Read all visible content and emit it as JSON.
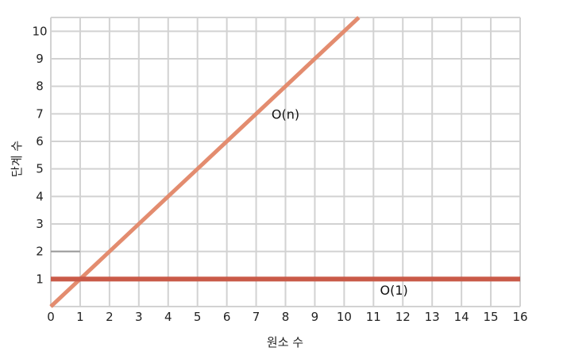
{
  "chart_data": {
    "type": "line",
    "xlabel": "원소 수",
    "ylabel": "단계 수",
    "xlim": [
      0,
      16
    ],
    "ylim": [
      0,
      10.5
    ],
    "x_ticks": [
      "0",
      "1",
      "2",
      "3",
      "4",
      "5",
      "6",
      "7",
      "8",
      "9",
      "10",
      "11",
      "12",
      "13",
      "14",
      "15",
      "16"
    ],
    "y_ticks": [
      "1",
      "2",
      "3",
      "4",
      "5",
      "6",
      "7",
      "8",
      "9",
      "10"
    ],
    "grid": true,
    "series": [
      {
        "name": "O(n)",
        "color": "#e38c6f",
        "points": [
          [
            0,
            0
          ],
          [
            10.5,
            10.5
          ]
        ],
        "label_at": [
          8,
          7
        ]
      },
      {
        "name": "O(1)",
        "color": "#c95a48",
        "points": [
          [
            0,
            1
          ],
          [
            16,
            1
          ]
        ],
        "label_at": [
          11.7,
          0.6
        ]
      }
    ],
    "gray_marker": {
      "color": "#999999",
      "points": [
        [
          0,
          2
        ],
        [
          1,
          2
        ]
      ]
    }
  }
}
